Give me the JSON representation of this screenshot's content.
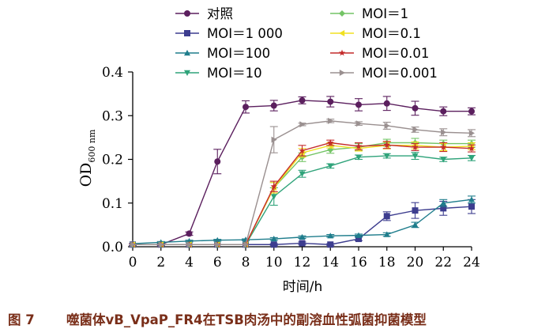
{
  "chart_data": {
    "type": "line",
    "xlabel": "时间/h",
    "ylabel_main": "OD",
    "ylabel_sub": "600 nm",
    "xlim": [
      0,
      24
    ],
    "ylim": [
      0,
      0.4
    ],
    "xticks": [
      "0",
      "2",
      "4",
      "6",
      "8",
      "10",
      "12",
      "14",
      "16",
      "18",
      "20",
      "22",
      "24"
    ],
    "yticks": [
      "0.0",
      "0.1",
      "0.2",
      "0.3",
      "0.4"
    ],
    "legend_position": "top",
    "x": [
      0,
      2,
      4,
      6,
      8,
      10,
      12,
      14,
      16,
      18,
      20,
      22,
      24
    ],
    "series": [
      {
        "name": "对照",
        "color": "#5b1f5e",
        "marker": "circle",
        "values": [
          0.005,
          0.005,
          0.03,
          0.195,
          0.32,
          0.323,
          0.335,
          0.332,
          0.325,
          0.328,
          0.317,
          0.31,
          0.31
        ],
        "errors": [
          0.002,
          0.002,
          0.004,
          0.028,
          0.014,
          0.012,
          0.008,
          0.012,
          0.014,
          0.016,
          0.016,
          0.01,
          0.008
        ]
      },
      {
        "name": "MOI＝1 000",
        "color": "#3d3d8f",
        "marker": "square",
        "values": [
          0.005,
          0.005,
          0.005,
          0.005,
          0.005,
          0.005,
          0.008,
          0.005,
          0.018,
          0.07,
          0.083,
          0.088,
          0.092
        ],
        "errors": [
          0.001,
          0.001,
          0.001,
          0.001,
          0.001,
          0.002,
          0.003,
          0.002,
          0.004,
          0.01,
          0.018,
          0.016,
          0.016
        ]
      },
      {
        "name": "MOI＝100",
        "color": "#1f7d8c",
        "marker": "triangle-up",
        "values": [
          0.007,
          0.01,
          0.013,
          0.015,
          0.016,
          0.018,
          0.022,
          0.025,
          0.026,
          0.028,
          0.05,
          0.1,
          0.108
        ],
        "errors": [
          0.001,
          0.002,
          0.002,
          0.002,
          0.002,
          0.003,
          0.003,
          0.003,
          0.003,
          0.004,
          0.006,
          0.008,
          0.008
        ]
      },
      {
        "name": "MOI＝10",
        "color": "#2fa37a",
        "marker": "triangle-down",
        "values": [
          0.005,
          0.005,
          0.005,
          0.005,
          0.005,
          0.115,
          0.167,
          0.185,
          0.205,
          0.208,
          0.208,
          0.2,
          0.203
        ],
        "errors": [
          0.001,
          0.001,
          0.001,
          0.001,
          0.001,
          0.02,
          0.008,
          0.005,
          0.005,
          0.005,
          0.008,
          0.005,
          0.006
        ]
      },
      {
        "name": "MOI＝1",
        "color": "#74c466",
        "marker": "diamond",
        "values": [
          0.005,
          0.005,
          0.005,
          0.005,
          0.005,
          0.135,
          0.205,
          0.222,
          0.228,
          0.238,
          0.238,
          0.236,
          0.236
        ],
        "errors": [
          0.001,
          0.001,
          0.001,
          0.001,
          0.001,
          0.012,
          0.01,
          0.008,
          0.008,
          0.008,
          0.01,
          0.008,
          0.008
        ]
      },
      {
        "name": "MOI＝0.1",
        "color": "#f0e020",
        "marker": "triangle-left",
        "values": [
          0.005,
          0.005,
          0.005,
          0.005,
          0.005,
          0.135,
          0.215,
          0.232,
          0.225,
          0.232,
          0.232,
          0.228,
          0.23
        ],
        "errors": [
          0.001,
          0.001,
          0.001,
          0.001,
          0.001,
          0.012,
          0.01,
          0.006,
          0.006,
          0.008,
          0.008,
          0.008,
          0.008
        ]
      },
      {
        "name": "MOI＝0.01",
        "color": "#c42b2b",
        "marker": "star",
        "values": [
          0.005,
          0.005,
          0.005,
          0.005,
          0.005,
          0.138,
          0.22,
          0.238,
          0.23,
          0.233,
          0.228,
          0.228,
          0.225
        ],
        "errors": [
          0.001,
          0.001,
          0.001,
          0.001,
          0.001,
          0.012,
          0.012,
          0.006,
          0.008,
          0.008,
          0.008,
          0.01,
          0.008
        ]
      },
      {
        "name": "MOI＝0.001",
        "color": "#9a9090",
        "marker": "triangle-right",
        "values": [
          0.005,
          0.005,
          0.005,
          0.005,
          0.005,
          0.245,
          0.28,
          0.288,
          0.282,
          0.277,
          0.268,
          0.262,
          0.26
        ],
        "errors": [
          0.001,
          0.001,
          0.001,
          0.001,
          0.001,
          0.03,
          0.003,
          0.004,
          0.004,
          0.008,
          0.006,
          0.008,
          0.008
        ]
      }
    ]
  },
  "caption": {
    "figure_number": "图 7",
    "text": "噬菌体vB_VpaP_FR4在TSB肉汤中的副溶血性弧菌抑菌模型"
  }
}
